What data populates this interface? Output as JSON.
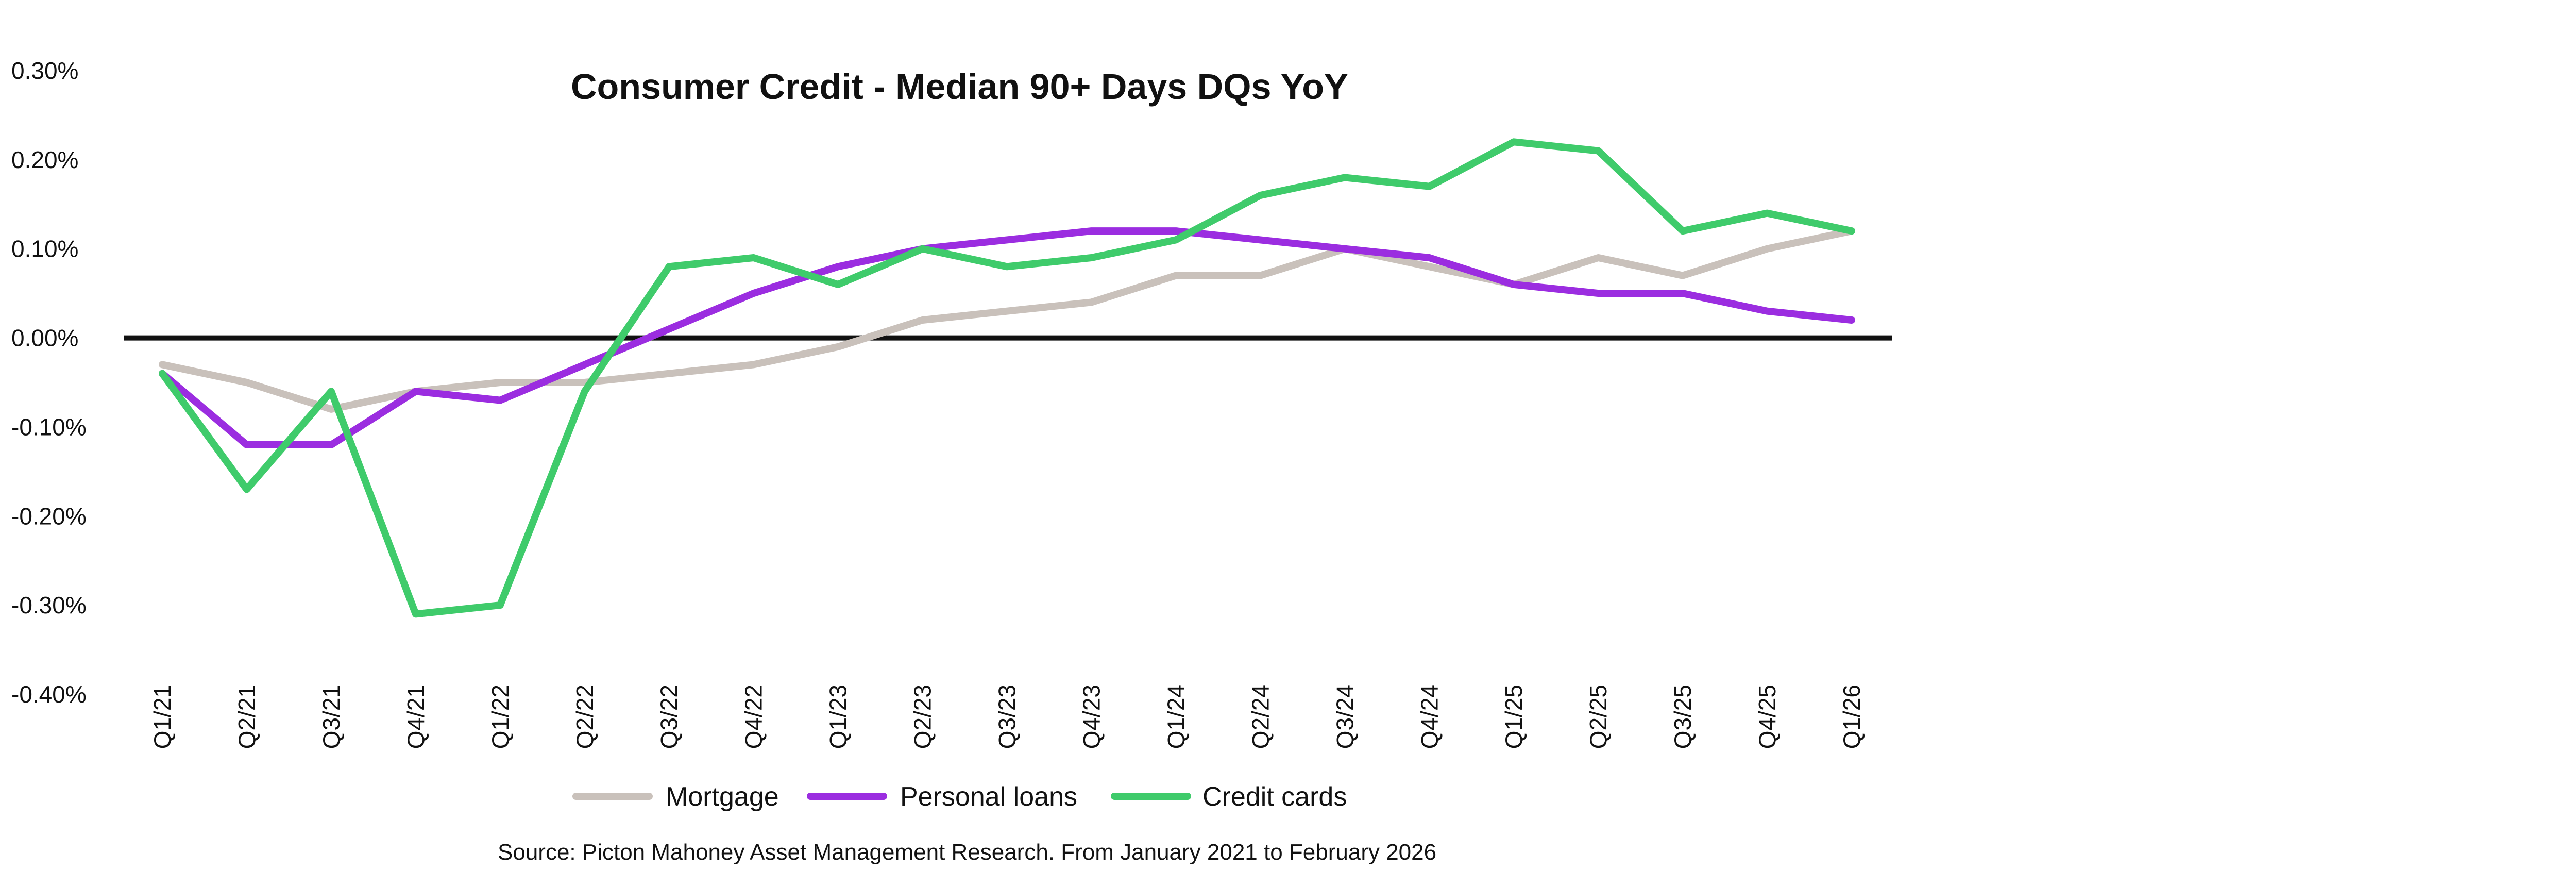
{
  "chart_data": {
    "type": "line",
    "title": "Consumer Credit - Median 90+ Days DQs YoY",
    "xlabel": "",
    "ylabel": "",
    "categories": [
      "Q1/21",
      "Q2/21",
      "Q3/21",
      "Q4/21",
      "Q1/22",
      "Q2/22",
      "Q3/22",
      "Q4/22",
      "Q1/23",
      "Q2/23",
      "Q3/23",
      "Q4/23",
      "Q1/24",
      "Q2/24",
      "Q3/24",
      "Q4/24",
      "Q1/25",
      "Q2/25",
      "Q3/25",
      "Q4/25",
      "Q1/26"
    ],
    "ylim": [
      -0.4,
      0.3
    ],
    "yticks": [
      "0.30%",
      "0.20%",
      "0.10%",
      "0.00%",
      "-0.10%",
      "-0.20%",
      "-0.30%",
      "-0.40%"
    ],
    "ytick_values": [
      0.3,
      0.2,
      0.1,
      0.0,
      -0.1,
      -0.2,
      -0.3,
      -0.4
    ],
    "y_unit": "%",
    "grid": false,
    "zero_line": true,
    "legend_position": "bottom",
    "series": [
      {
        "name": "Mortgage",
        "color": "#c9c1bb",
        "values": [
          -0.03,
          -0.05,
          -0.08,
          -0.06,
          -0.05,
          -0.05,
          -0.04,
          -0.03,
          -0.01,
          0.02,
          0.03,
          0.04,
          0.07,
          0.07,
          0.1,
          null,
          0.06,
          0.09,
          0.07,
          0.1,
          0.12
        ]
      },
      {
        "name": "Personal loans",
        "color": "#9b2de0",
        "values": [
          -0.04,
          -0.12,
          -0.12,
          -0.06,
          -0.07,
          -0.03,
          0.01,
          0.05,
          0.08,
          0.1,
          0.11,
          0.12,
          0.12,
          0.11,
          0.1,
          0.09,
          0.06,
          0.05,
          0.05,
          0.03,
          0.02
        ]
      },
      {
        "name": "Credit cards",
        "color": "#3fcb6b",
        "values": [
          -0.04,
          -0.17,
          -0.06,
          -0.31,
          -0.3,
          -0.06,
          0.08,
          0.09,
          0.06,
          0.1,
          0.08,
          0.09,
          0.11,
          0.16,
          0.18,
          0.17,
          0.22,
          0.21,
          0.12,
          0.14,
          0.12
        ]
      }
    ],
    "source": "Source: Picton Mahoney Asset Management Research. From January 2021 to February 2026"
  }
}
